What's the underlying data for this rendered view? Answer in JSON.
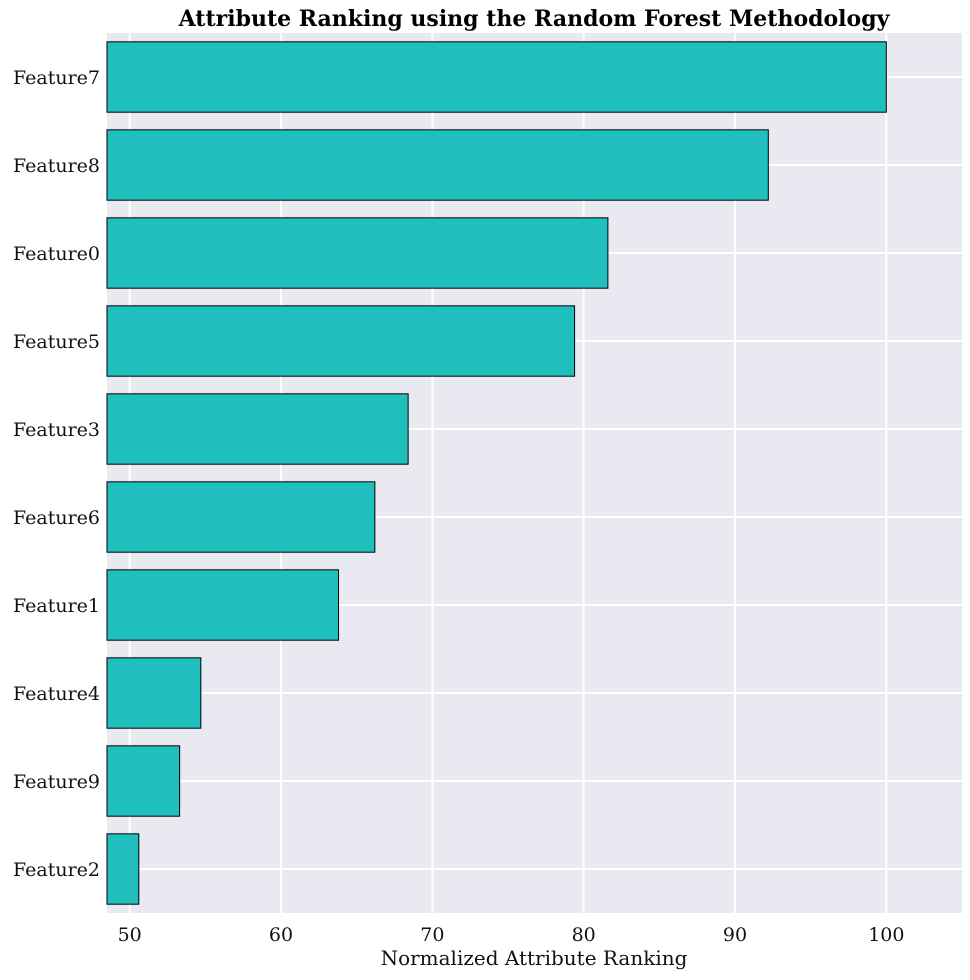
{
  "chart_data": {
    "type": "bar",
    "orientation": "horizontal",
    "title": "Attribute Ranking using the Random Forest Methodology",
    "xlabel": "Normalized Attribute Ranking",
    "ylabel": "",
    "categories": [
      "Feature7",
      "Feature8",
      "Feature0",
      "Feature5",
      "Feature3",
      "Feature6",
      "Feature1",
      "Feature4",
      "Feature9",
      "Feature2"
    ],
    "values": [
      100,
      92.2,
      81.6,
      79.4,
      68.4,
      66.2,
      63.8,
      54.7,
      53.3,
      50.6
    ],
    "xlim": [
      48.5,
      105
    ],
    "xticks": [
      50,
      60,
      70,
      80,
      90,
      100
    ],
    "grid": true,
    "colors": {
      "bar": "#20bfbd",
      "bar_edge": "#000000",
      "background": "#e9e9f1",
      "grid": "#ffffff"
    }
  }
}
